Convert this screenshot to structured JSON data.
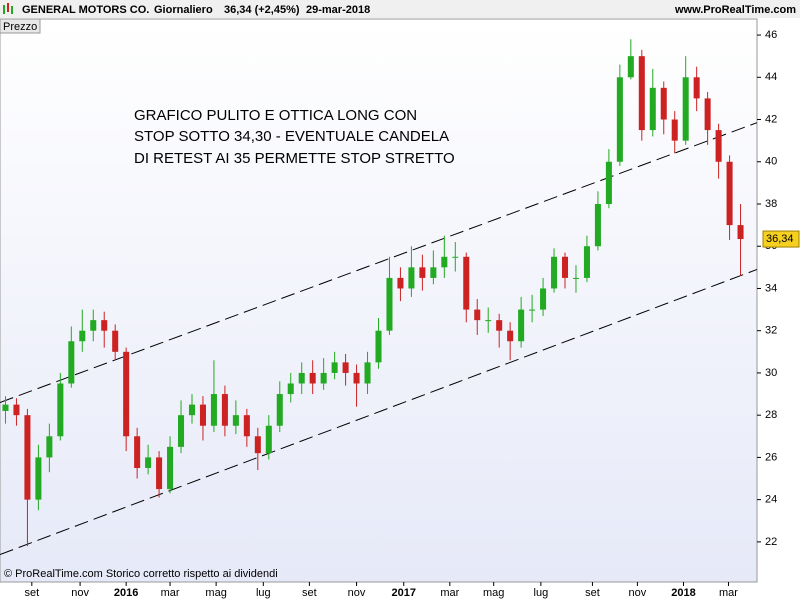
{
  "chart_data": {
    "type": "candlestick",
    "header": {
      "name": "GENERAL MOTORS CO.",
      "period": "Giornaliero",
      "quote": "36,34 (+2,45%)",
      "date": "29-mar-2018",
      "site": "www.ProRealTime.com"
    },
    "panel_label": "Prezzo",
    "annotation": [
      "GRAFICO PULITO E OTTICA LONG CON",
      "STOP SOTTO 34,30 - EVENTUALE CANDELA",
      "DI RETEST AI 35 PERMETTE STOP STRETTO"
    ],
    "footer": "© ProRealTime.com  Storico corretto rispetto ai dividendi",
    "last_price": {
      "value": 36.34,
      "label": "36,34"
    },
    "up_color": "#22aa22",
    "down_color": "#cc2222",
    "open": [
      28.2,
      28.5,
      28,
      24,
      26,
      27,
      29.5,
      31.5,
      32,
      32.5,
      32,
      31,
      27,
      25.5,
      26,
      24.5,
      26.5,
      28,
      28.5,
      27.5,
      29,
      27.5,
      28,
      27,
      26.2,
      27.5,
      29,
      29.5,
      30,
      29.5,
      30,
      30.5,
      30,
      29.5,
      30.5,
      32,
      34.5,
      34,
      35,
      34.5,
      35,
      35.5,
      35.5,
      33,
      32.5,
      32.5,
      32,
      31.5,
      33,
      33,
      34,
      35.5,
      34.5,
      34.5,
      36,
      38,
      40,
      44,
      45,
      41.5,
      43.5,
      42,
      41,
      44,
      43,
      41.5,
      40,
      37
    ],
    "high": [
      28.9,
      28.8,
      28.3,
      26.6,
      27.6,
      30,
      32.2,
      33,
      33,
      32.9,
      32.3,
      31.2,
      27.4,
      26.6,
      26.3,
      27,
      28.7,
      29,
      28.9,
      30.6,
      29.4,
      28.7,
      28.3,
      27.4,
      28,
      29.6,
      30,
      30.5,
      30.6,
      30.7,
      31,
      30.9,
      30.4,
      31,
      32.6,
      35.5,
      35,
      36,
      35.6,
      35.8,
      36.5,
      36.2,
      35.7,
      33.5,
      33.1,
      32.8,
      32.4,
      33.6,
      33.7,
      34.5,
      35.9,
      35.7,
      35.1,
      36.5,
      38.6,
      40.6,
      44.6,
      45.8,
      45.3,
      44.4,
      43.8,
      42.4,
      45,
      44.5,
      43.3,
      41.8,
      40.3,
      38
    ],
    "low": [
      27.6,
      27.5,
      21.8,
      23.5,
      25.3,
      26.8,
      29.3,
      31,
      31.5,
      31.2,
      30.6,
      26.3,
      25,
      25.2,
      24.1,
      24.3,
      26.2,
      27.6,
      26.8,
      27.2,
      27,
      27.1,
      26.5,
      25.4,
      25.9,
      27.2,
      28.6,
      29,
      29,
      29.2,
      29.7,
      29.4,
      28.4,
      29,
      30.2,
      31.8,
      33.4,
      33.6,
      33.9,
      34.2,
      34.5,
      34.8,
      32.4,
      31.8,
      31.9,
      31.2,
      30.6,
      31.2,
      32.4,
      32.7,
      33.8,
      34,
      33.8,
      34.3,
      35.8,
      37.8,
      39.8,
      43.9,
      41,
      41.2,
      41.3,
      40.4,
      40.8,
      42.4,
      40.8,
      39.2,
      36.3,
      34.6
    ],
    "close": [
      28.5,
      28,
      24,
      26,
      27,
      29.5,
      31.5,
      32,
      32.5,
      32,
      31,
      27,
      25.5,
      26,
      24.5,
      26.5,
      28,
      28.5,
      27.5,
      29,
      27.5,
      28,
      27,
      26.2,
      27.5,
      29,
      29.5,
      30,
      29.5,
      30,
      30.5,
      30,
      29.5,
      30.5,
      32,
      34.5,
      34,
      35,
      34.5,
      35,
      35.5,
      35.5,
      33,
      32.5,
      32.5,
      32,
      31.5,
      33,
      33,
      34,
      35.5,
      34.5,
      34.5,
      36,
      38,
      40,
      44,
      45,
      41.5,
      43.5,
      42,
      41,
      44,
      43,
      41.5,
      40,
      37,
      36.34
    ],
    "trendlines": [
      {
        "x": [
          -0.5,
          68.5
        ],
        "y": [
          28.6,
          41.85
        ]
      },
      {
        "x": [
          -0.5,
          68.5
        ],
        "y": [
          21.4,
          34.9
        ]
      }
    ],
    "xlim": [
      -0.5,
      68.5
    ],
    "xticks": [
      {
        "value": 2.4,
        "label": "set"
      },
      {
        "value": 6.8,
        "label": "nov"
      },
      {
        "value": 11,
        "label": "2016"
      },
      {
        "value": 15,
        "label": "mar"
      },
      {
        "value": 19.2,
        "label": "mag"
      },
      {
        "value": 23.5,
        "label": "lug"
      },
      {
        "value": 27.7,
        "label": "set"
      },
      {
        "value": 32,
        "label": "nov"
      },
      {
        "value": 36.3,
        "label": "2017"
      },
      {
        "value": 40.5,
        "label": "mar"
      },
      {
        "value": 44.5,
        "label": "mag"
      },
      {
        "value": 48.8,
        "label": "lug"
      },
      {
        "value": 53.5,
        "label": "set"
      },
      {
        "value": 57.6,
        "label": "nov"
      },
      {
        "value": 61.8,
        "label": "2018"
      },
      {
        "value": 65.9,
        "label": "mar"
      }
    ],
    "ylim": [
      20.1,
      46.76
    ],
    "yticks": [
      22,
      24,
      26,
      28,
      30,
      32,
      34,
      36,
      38,
      40,
      42,
      44,
      46
    ]
  }
}
